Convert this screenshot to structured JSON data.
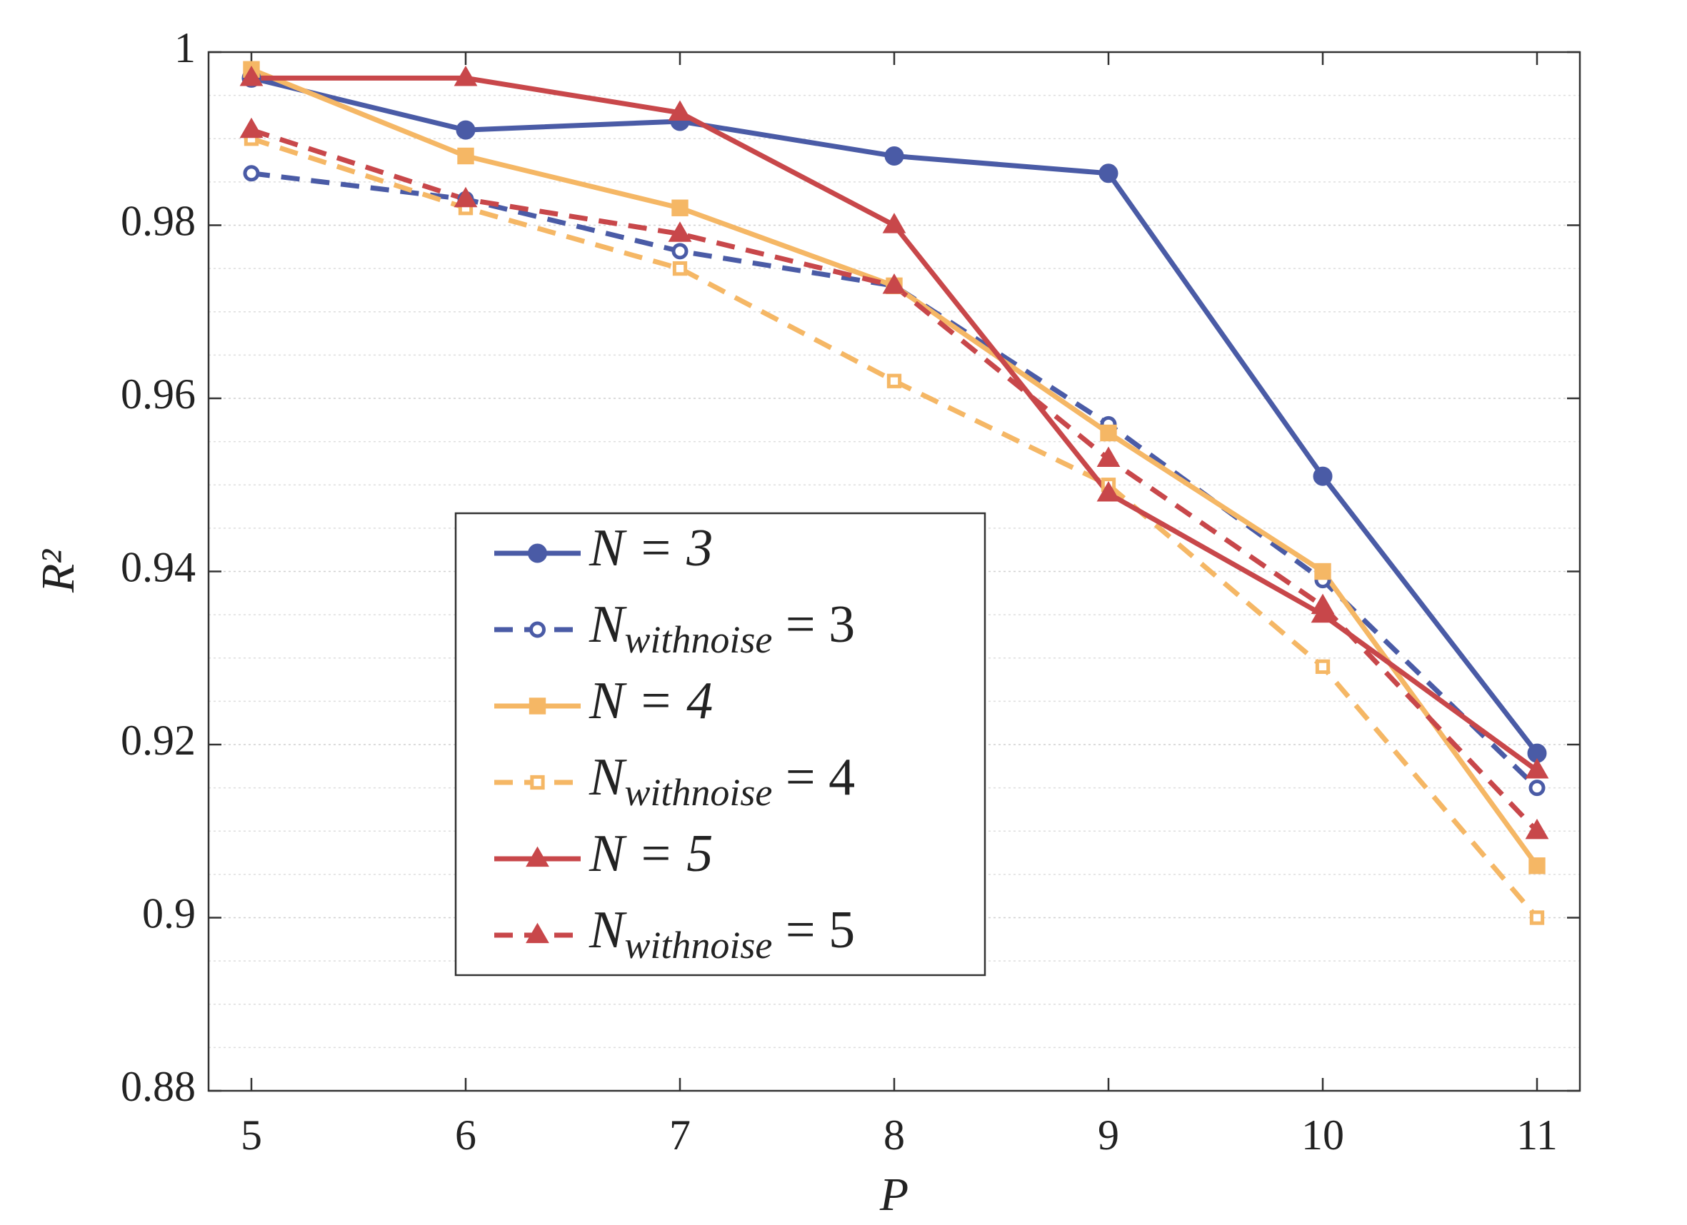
{
  "chart_data": {
    "type": "line",
    "x_label": "P",
    "y_label": "R²",
    "x": [
      5,
      6,
      7,
      8,
      9,
      10,
      11
    ],
    "xlim": [
      4.8,
      11.2
    ],
    "xticks": [
      5,
      6,
      7,
      8,
      9,
      10,
      11
    ],
    "ylim": [
      0.88,
      1
    ],
    "yticks": [
      0.88,
      0.9,
      0.92,
      0.94,
      0.96,
      0.98,
      1
    ],
    "grid": true,
    "minor_grid": true,
    "legend_loc": "center",
    "series": [
      {
        "name": "N = 3",
        "color": "#4a5ba6",
        "linestyle": "solid",
        "marker": "circle",
        "marker_fill": "filled",
        "values": [
          0.997,
          0.991,
          0.992,
          0.988,
          0.986,
          0.951,
          0.919
        ]
      },
      {
        "name": "Nwithnoise = 3",
        "color": "#4a5ba6",
        "linestyle": "dashed",
        "marker": "circle",
        "marker_fill": "open",
        "values": [
          0.986,
          0.983,
          0.977,
          0.973,
          0.957,
          0.939,
          0.915
        ]
      },
      {
        "name": "N = 4",
        "color": "#f5b765",
        "linestyle": "solid",
        "marker": "square",
        "marker_fill": "filled",
        "values": [
          0.998,
          0.988,
          0.982,
          0.973,
          0.956,
          0.94,
          0.906
        ]
      },
      {
        "name": "Nwithnoise = 4",
        "color": "#f5b765",
        "linestyle": "dashed",
        "marker": "square",
        "marker_fill": "open",
        "values": [
          0.99,
          0.982,
          0.975,
          0.962,
          0.95,
          0.929,
          0.9
        ]
      },
      {
        "name": "N = 5",
        "color": "#c8474a",
        "linestyle": "solid",
        "marker": "triangle",
        "marker_fill": "filled",
        "values": [
          0.997,
          0.997,
          0.993,
          0.98,
          0.949,
          0.935,
          0.917
        ]
      },
      {
        "name": "Nwithnoise = 5",
        "color": "#c8474a",
        "linestyle": "dashed",
        "marker": "triangle",
        "marker_fill": "filled",
        "values": [
          0.991,
          0.983,
          0.979,
          0.973,
          0.953,
          0.936,
          0.91
        ]
      }
    ]
  }
}
